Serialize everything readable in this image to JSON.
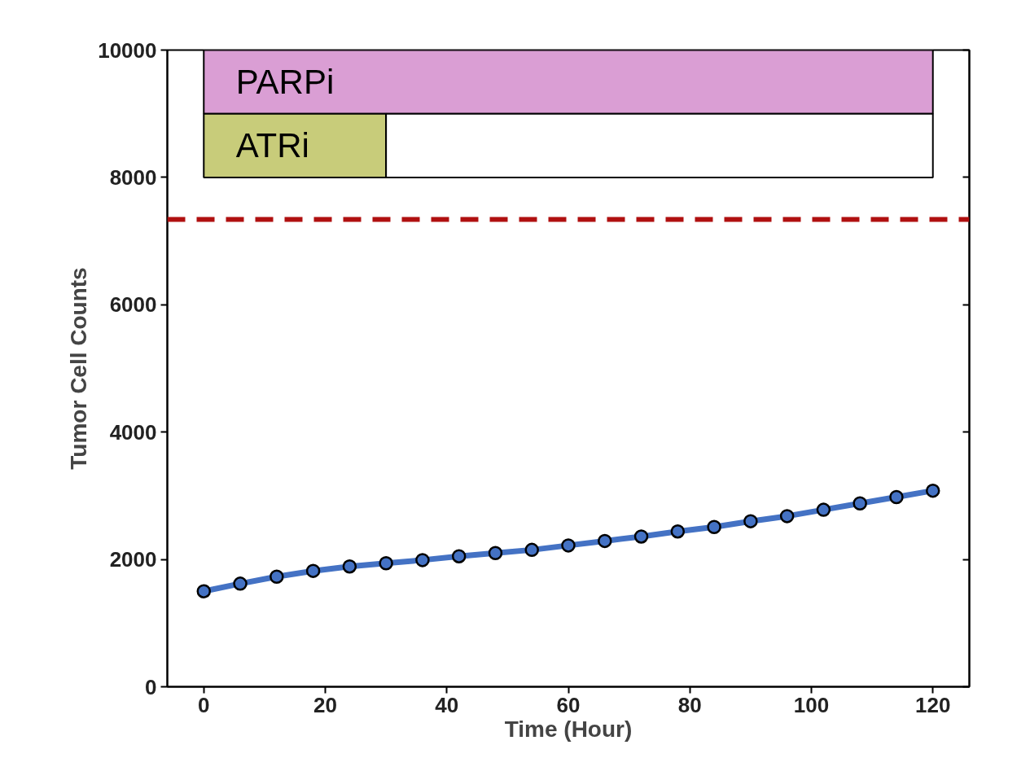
{
  "chart_data": {
    "type": "line",
    "xlabel": "Time (Hour)",
    "ylabel": "Tumor Cell Counts",
    "x": [
      0,
      6,
      12,
      18,
      24,
      30,
      36,
      42,
      48,
      54,
      60,
      66,
      72,
      78,
      84,
      90,
      96,
      102,
      108,
      114,
      120
    ],
    "series": [
      {
        "color": "#4472c4",
        "values": [
          1500,
          1620,
          1730,
          1820,
          1890,
          1940,
          1990,
          2050,
          2100,
          2150,
          2220,
          2290,
          2360,
          2440,
          2510,
          2600,
          2680,
          2780,
          2880,
          2980,
          3080
        ]
      }
    ],
    "xlim": [
      -6,
      126
    ],
    "ylim": [
      0,
      10000
    ],
    "xticks": [
      0,
      20,
      40,
      60,
      80,
      100,
      120
    ],
    "yticks": [
      0,
      2000,
      4000,
      6000,
      8000,
      10000
    ],
    "ref_lines": [
      {
        "axis": "y",
        "value": 7340,
        "color": "#b01010",
        "line_style": "dashed"
      }
    ],
    "bands": [
      {
        "axis": "x",
        "from": 0,
        "to": 120,
        "label": "PARPi",
        "color": "#da9ed4"
      },
      {
        "axis": "x",
        "from": 0,
        "to": 30,
        "label": "ATRi",
        "color": "#c8cc7a"
      },
      {
        "axis": "x",
        "from": 30,
        "to": 120,
        "color": "#ffffff"
      }
    ],
    "grid": false,
    "marker": "circle",
    "line_style": "solid"
  }
}
